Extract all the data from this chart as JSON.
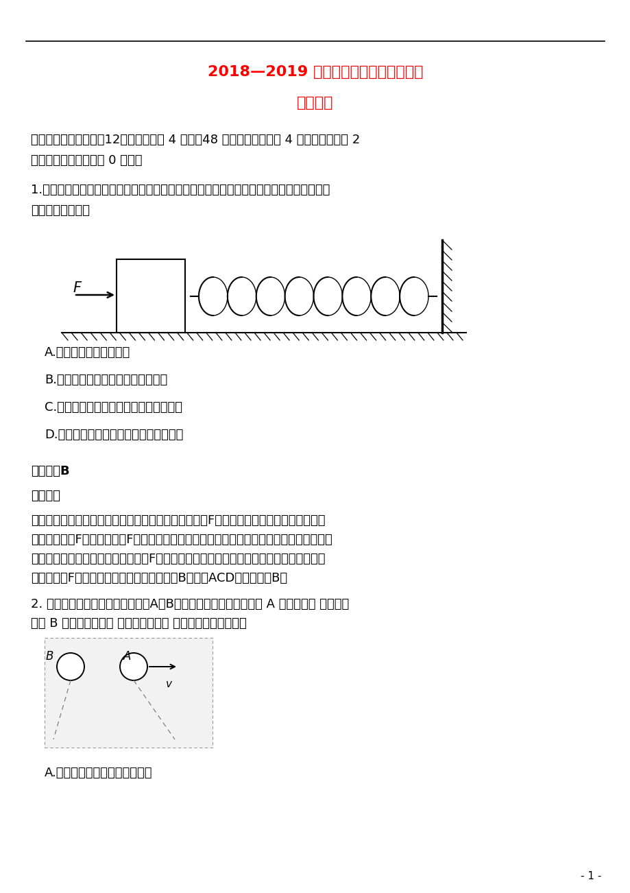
{
  "title1": "2018—2019 学年度高三上学期期中考试",
  "title2": "物理试卷",
  "section1": "一、选择题　（本题全12小题，每小题 4 分，全48 分。全部选对的得 4 分，选不全的得 2",
  "section1b": "分，有选错或不答的得 0 分。）",
  "q1": "1.如图所示，一木块在光滑水平面上受一恒力ｆ作用，前方固定一足够长的弹簧，则当木块",
  "q1b": "接触弹簧后（　）",
  "optA": "A.　木块立即做减速运动",
  "optB": "B.　木块在一段时间内速度仍可增大",
  "optC": "C.　当ｆ等于弹簧弹力时，木块速度最小",
  "optD": "D.　弹簧压缩量最大时，木块加速度为零",
  "ans1": "【答案】B",
  "analysis1": "【解析】",
  "detail1": "【详解】当木块接触弹簧后，水平方向受到向右的恒力F和弹簧水平向左的弹力。弹簧的弹",
  "detail1b": "力先小于恒力F，后大于恒力F，木块所受的合力方向先向右后向左，则木块先做加速运动，",
  "detail1c": "后做减速运动，当弹力大小等于恒力F时，木块的速度为最大値。当弹簧压缩量最大时，弹",
  "detail1d": "力大于恒力F，合力向左，加速度大于零，故B正确，ACD错误。故选B。",
  "q2": "2. 如图所示，两个质量相等的小球A、B处在同一水平线上，当小球 A 被水平抛出 的同时，",
  "q2b": "小球 B 开始自由下落， 两球均未落地。 不计空气阻力，则（）",
  "optA2": "A.　两球的速度变化快慢不相同",
  "bg_color": "#ffffff",
  "text_color": "#000000",
  "title_color": "#ff0000"
}
